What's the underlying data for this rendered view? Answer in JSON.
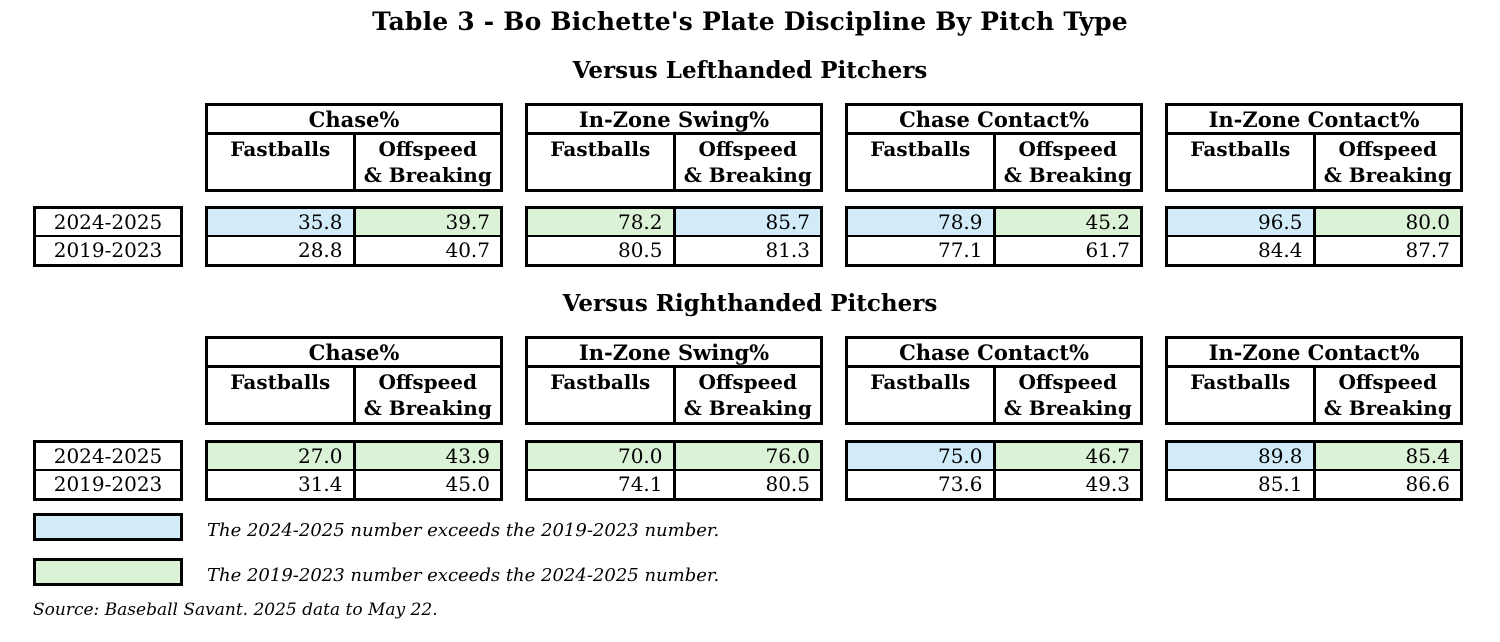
{
  "title": "Table 3 - Bo Bichette's Plate Discipline By Pitch Type",
  "colors": {
    "blue": "#d2ebf8",
    "green": "#dcf2d6",
    "border": "#000000"
  },
  "row_labels": [
    "2024-2025",
    "2019-2023"
  ],
  "col_headers": {
    "fastballs": "Fastballs",
    "offspeed": "Offspeed\n& Breaking"
  },
  "sections": [
    {
      "heading": "Versus Lefthanded Pitchers",
      "groups": [
        {
          "metric": "Chase%",
          "rows": [
            {
              "fb": "35.8",
              "fb_hl": "blue",
              "os": "39.7",
              "os_hl": "green"
            },
            {
              "fb": "28.8",
              "os": "40.7"
            }
          ]
        },
        {
          "metric": "In-Zone Swing%",
          "rows": [
            {
              "fb": "78.2",
              "fb_hl": "green",
              "os": "85.7",
              "os_hl": "blue"
            },
            {
              "fb": "80.5",
              "os": "81.3"
            }
          ]
        },
        {
          "metric": "Chase Contact%",
          "rows": [
            {
              "fb": "78.9",
              "fb_hl": "blue",
              "os": "45.2",
              "os_hl": "green"
            },
            {
              "fb": "77.1",
              "os": "61.7"
            }
          ]
        },
        {
          "metric": "In-Zone Contact%",
          "rows": [
            {
              "fb": "96.5",
              "fb_hl": "blue",
              "os": "80.0",
              "os_hl": "green"
            },
            {
              "fb": "84.4",
              "os": "87.7"
            }
          ]
        }
      ]
    },
    {
      "heading": "Versus Righthanded Pitchers",
      "groups": [
        {
          "metric": "Chase%",
          "rows": [
            {
              "fb": "27.0",
              "fb_hl": "green",
              "os": "43.9",
              "os_hl": "green"
            },
            {
              "fb": "31.4",
              "os": "45.0"
            }
          ]
        },
        {
          "metric": "In-Zone Swing%",
          "rows": [
            {
              "fb": "70.0",
              "fb_hl": "green",
              "os": "76.0",
              "os_hl": "green"
            },
            {
              "fb": "74.1",
              "os": "80.5"
            }
          ]
        },
        {
          "metric": "Chase Contact%",
          "rows": [
            {
              "fb": "75.0",
              "fb_hl": "blue",
              "os": "46.7",
              "os_hl": "green"
            },
            {
              "fb": "73.6",
              "os": "49.3"
            }
          ]
        },
        {
          "metric": "In-Zone Contact%",
          "rows": [
            {
              "fb": "89.8",
              "fb_hl": "blue",
              "os": "85.4",
              "os_hl": "green"
            },
            {
              "fb": "85.1",
              "os": "86.6"
            }
          ]
        }
      ]
    }
  ],
  "legend": [
    {
      "swatch": "blue",
      "text": "The 2024-2025 number exceeds the 2019-2023 number."
    },
    {
      "swatch": "green",
      "text": "The 2019-2023 number exceeds the 2024-2025 number."
    }
  ],
  "source": "Source: Baseball Savant. 2025 data to May 22."
}
